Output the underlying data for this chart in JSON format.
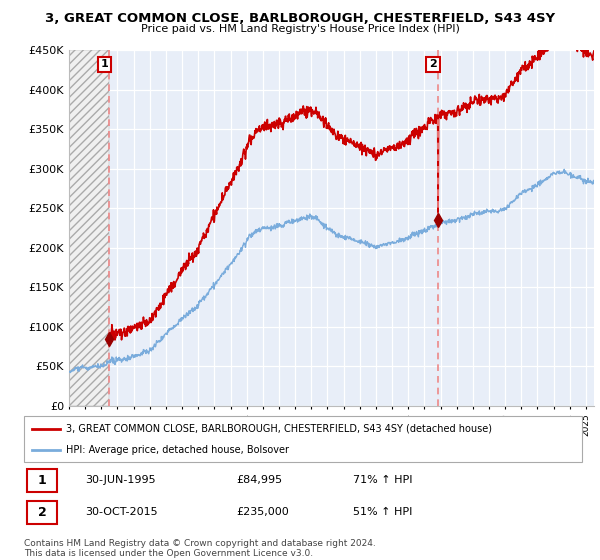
{
  "title": "3, GREAT COMMON CLOSE, BARLBOROUGH, CHESTERFIELD, S43 4SY",
  "subtitle": "Price paid vs. HM Land Registry's House Price Index (HPI)",
  "legend_line1": "3, GREAT COMMON CLOSE, BARLBOROUGH, CHESTERFIELD, S43 4SY (detached house)",
  "legend_line2": "HPI: Average price, detached house, Bolsover",
  "annotation1_date": "30-JUN-1995",
  "annotation1_price": "£84,995",
  "annotation1_hpi": "71% ↑ HPI",
  "annotation2_date": "30-OCT-2015",
  "annotation2_price": "£235,000",
  "annotation2_hpi": "51% ↑ HPI",
  "footer": "Contains HM Land Registry data © Crown copyright and database right 2024.\nThis data is licensed under the Open Government Licence v3.0.",
  "sale1_x": 1995.5,
  "sale1_y": 84995,
  "sale2_x": 2015.83,
  "sale2_y": 235000,
  "red_line_color": "#cc0000",
  "blue_line_color": "#7aacdc",
  "marker_color": "#990000",
  "vline_color": "#ee8888",
  "annotation_box_color": "#cc0000",
  "background_plot": "#e8eef8",
  "ylim": [
    0,
    450000
  ],
  "xlim_start": 1993.0,
  "xlim_end": 2025.5
}
